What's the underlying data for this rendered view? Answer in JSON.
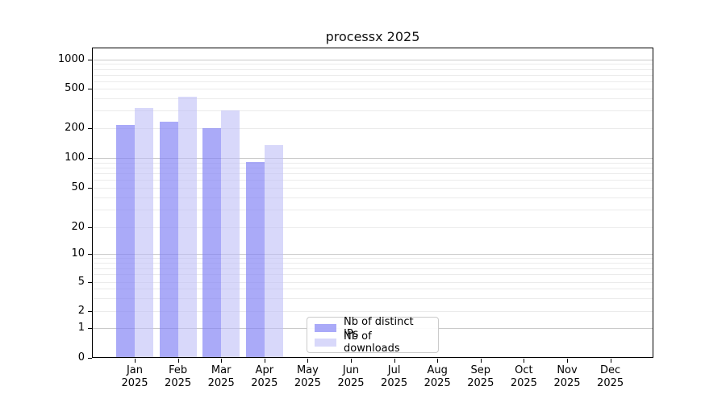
{
  "chart_data": {
    "type": "bar",
    "title": "processx 2025",
    "categories": [
      "Jan 2025",
      "Feb 2025",
      "Mar 2025",
      "Apr 2025",
      "May 2025",
      "Jun 2025",
      "Jul 2025",
      "Aug 2025",
      "Sep 2025",
      "Oct 2025",
      "Nov 2025",
      "Dec 2025"
    ],
    "series": [
      {
        "name": "Nb of distinct IPs",
        "color": "#8484f5",
        "alpha": 0.69,
        "values": [
          216,
          232,
          200,
          91,
          null,
          null,
          null,
          null,
          null,
          null,
          null,
          null
        ]
      },
      {
        "name": "Nb of downloads",
        "color": "#bebef7",
        "alpha": 0.6,
        "values": [
          318,
          415,
          303,
          136,
          null,
          null,
          null,
          null,
          null,
          null,
          null,
          null
        ]
      }
    ],
    "yscale": "log-like",
    "ytick_labels": [
      "0",
      "1",
      "2",
      "5",
      "10",
      "20",
      "50",
      "100",
      "200",
      "500",
      "1000"
    ],
    "ylim": [
      0,
      1400
    ],
    "grid": "horizontal major+minor",
    "legend_position": "lower center inside plot"
  },
  "colors": {
    "bar_distinct_ips": "#aaaaf8",
    "bar_downloads": "#d8d8fa",
    "grid_major": "#c9c9c9",
    "grid_minor": "#ebebeb",
    "axis": "#000000",
    "background": "#ffffff"
  }
}
